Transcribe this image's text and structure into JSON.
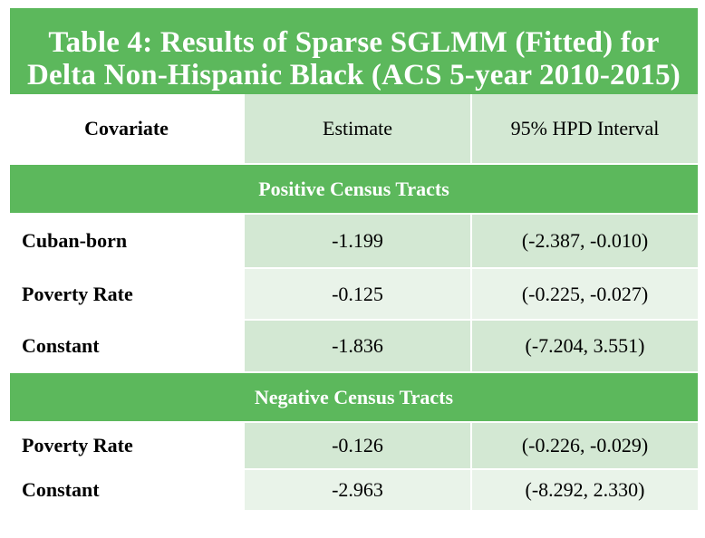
{
  "title": {
    "line1": "Table 4: Results of Sparse SGLMM (Fitted) for",
    "line2": "Delta Non-Hispanic Black (ACS 5-year 2010-2015)"
  },
  "columns": [
    "Covariate",
    "Estimate",
    "95% HPD Interval"
  ],
  "sections": [
    {
      "label": "Positive Census Tracts",
      "rows": [
        {
          "covariate": "Cuban-born",
          "estimate": "-1.199",
          "interval": "(-2.387, -0.010)"
        },
        {
          "covariate": "Poverty Rate",
          "estimate": "-0.125",
          "interval": "(-0.225, -0.027)"
        },
        {
          "covariate": "Constant",
          "estimate": "-1.836",
          "interval": "(-7.204, 3.551)"
        }
      ]
    },
    {
      "label": "Negative Census Tracts",
      "rows": [
        {
          "covariate": "Poverty Rate",
          "estimate": "-0.126",
          "interval": "(-0.226, -0.029)"
        },
        {
          "covariate": "Constant",
          "estimate": "-2.963",
          "interval": "(-8.292, 2.330)"
        }
      ]
    }
  ],
  "colors": {
    "title_bg": "#5cb85c",
    "section_bg": "#5cb85c",
    "cell_dark": "#d3e8d3",
    "cell_light": "#e9f3e9"
  }
}
